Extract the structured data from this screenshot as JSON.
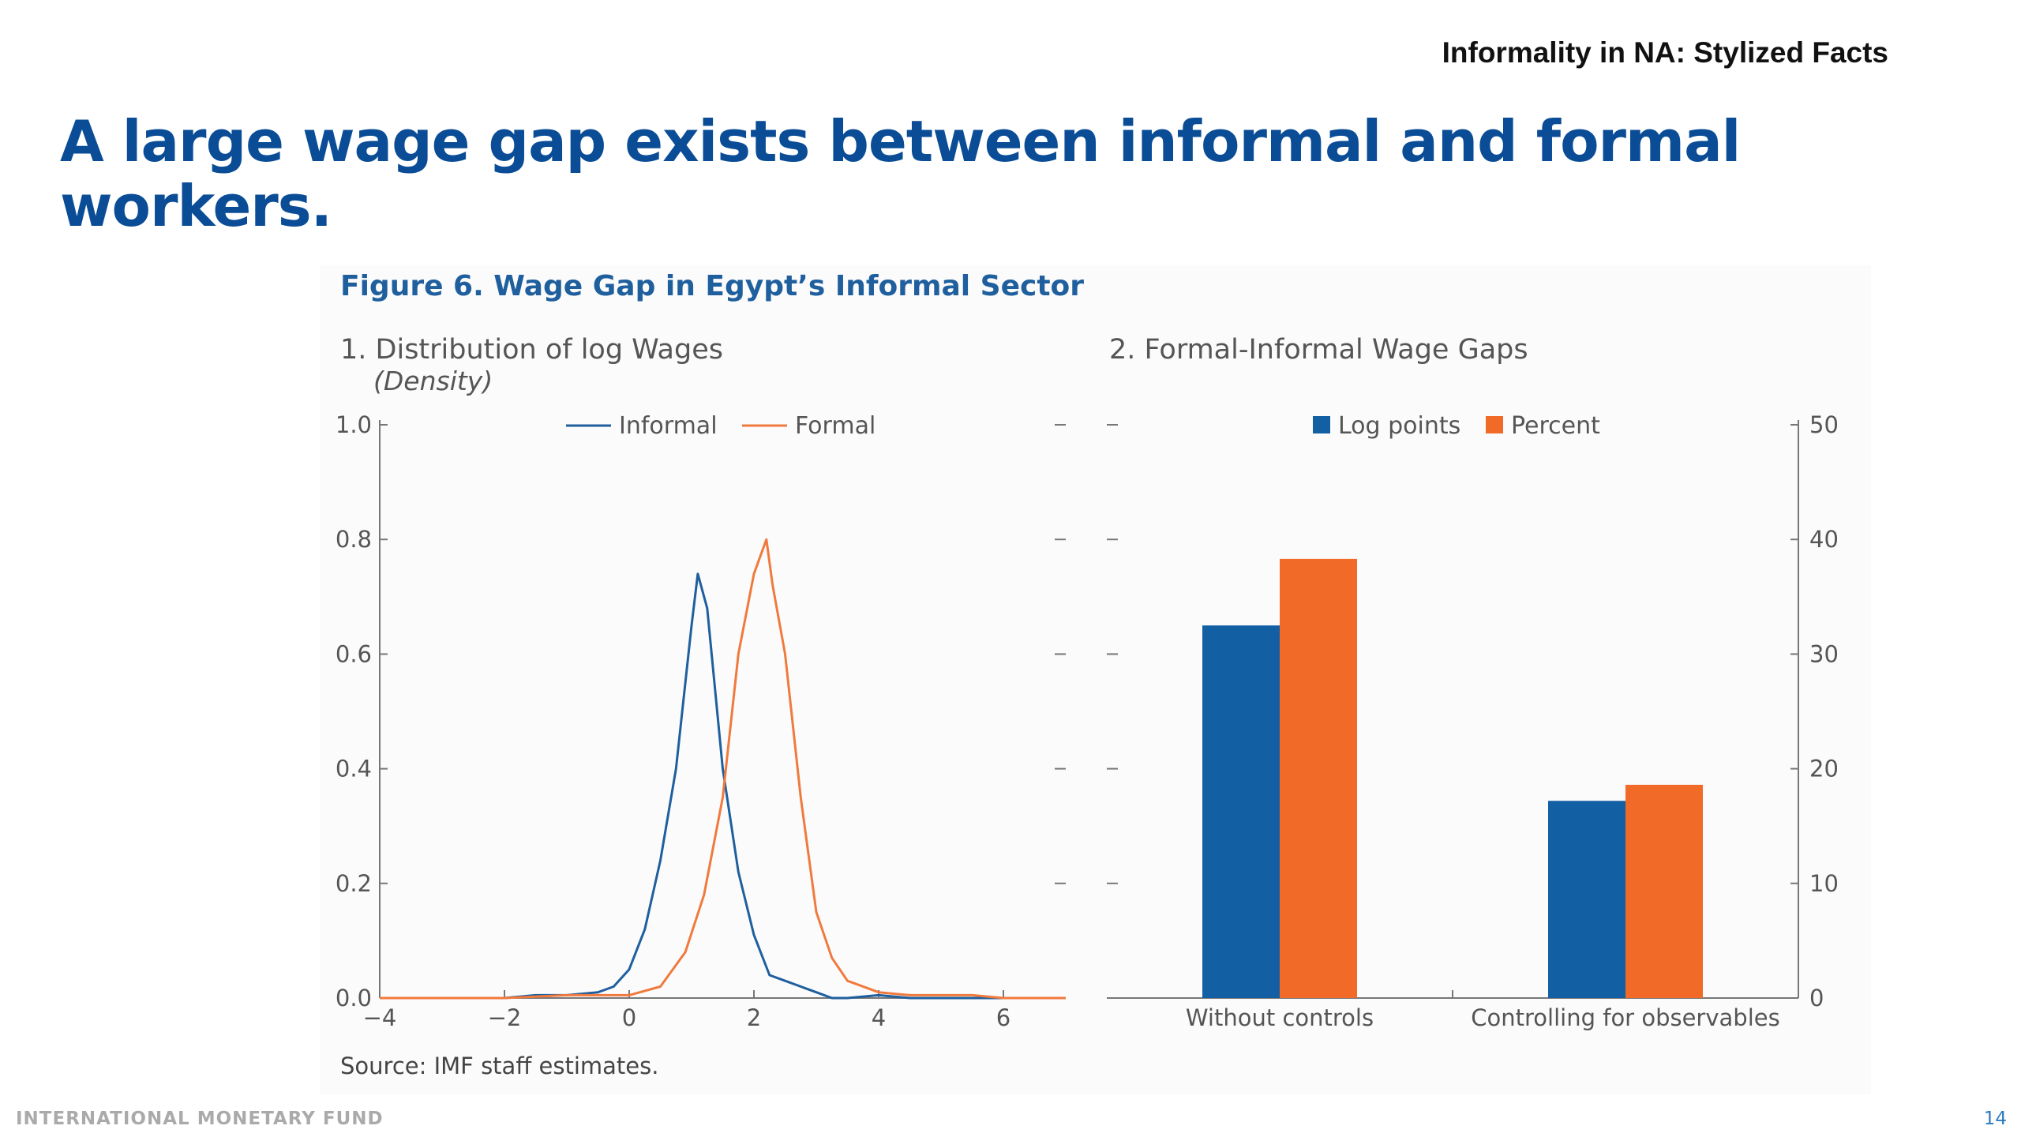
{
  "slide": {
    "header_tag": "Informality in NA: Stylized Facts",
    "title": "A large wage gap exists between informal and formal workers.",
    "footer_org": "INTERNATIONAL MONETARY FUND",
    "page_number": "14"
  },
  "figure": {
    "title": "Figure 6. Wage Gap in Egypt’s Informal Sector",
    "source": "Source: IMF staff estimates."
  },
  "colors": {
    "informal": "#1f5f9e",
    "formal": "#f07a3e",
    "log_points": "#135fa4",
    "percent": "#f26a28"
  },
  "chart_data": [
    {
      "type": "line",
      "title": "1. Distribution of log Wages",
      "subtitle": "(Density)",
      "xlim": [
        -4,
        7
      ],
      "ylim": [
        0,
        1
      ],
      "x_ticks": [
        "−4",
        "−2",
        "0",
        "2",
        "4",
        "6"
      ],
      "x_tick_values": [
        -4,
        -2,
        0,
        2,
        4,
        6
      ],
      "y_ticks": [
        "0.0",
        "0.2",
        "0.4",
        "0.6",
        "0.8",
        "1.0"
      ],
      "y_tick_values": [
        0,
        0.2,
        0.4,
        0.6,
        0.8,
        1.0
      ],
      "legend_position": "top",
      "series": [
        {
          "name": "Informal",
          "x": [
            -4,
            -3,
            -2,
            -1.5,
            -1,
            -0.5,
            -0.25,
            0,
            0.25,
            0.5,
            0.75,
            1.0,
            1.1,
            1.25,
            1.5,
            1.75,
            2.0,
            2.25,
            2.5,
            3.0,
            3.25,
            3.5,
            4.0,
            4.5,
            5.0,
            5.5,
            6.0,
            7.0
          ],
          "y": [
            0.0,
            0.0,
            0.0,
            0.005,
            0.005,
            0.01,
            0.02,
            0.05,
            0.12,
            0.24,
            0.4,
            0.65,
            0.74,
            0.68,
            0.4,
            0.22,
            0.11,
            0.04,
            0.03,
            0.01,
            0.0,
            0.0,
            0.005,
            0.0,
            0.0,
            0.0,
            0.0,
            0.0
          ]
        },
        {
          "name": "Formal",
          "x": [
            -4,
            -3,
            -2,
            -1,
            0,
            0.5,
            0.9,
            1.2,
            1.5,
            1.75,
            2.0,
            2.2,
            2.3,
            2.5,
            2.75,
            3.0,
            3.25,
            3.5,
            4.0,
            4.5,
            5.0,
            5.5,
            6.0,
            7.0
          ],
          "y": [
            0.0,
            0.0,
            0.0,
            0.005,
            0.005,
            0.02,
            0.08,
            0.18,
            0.35,
            0.6,
            0.74,
            0.8,
            0.72,
            0.6,
            0.35,
            0.15,
            0.07,
            0.03,
            0.01,
            0.005,
            0.005,
            0.005,
            0.0,
            0.0
          ]
        }
      ]
    },
    {
      "type": "bar",
      "title": "2. Formal-Informal Wage Gaps",
      "categories": [
        "Without controls",
        "Controlling for observables"
      ],
      "ylim": [
        0,
        50
      ],
      "y_ticks": [
        "0",
        "10",
        "20",
        "30",
        "40",
        "50"
      ],
      "y_tick_values": [
        0,
        10,
        20,
        30,
        40,
        50
      ],
      "y_axis_side": "right",
      "legend_position": "top",
      "series": [
        {
          "name": "Log points",
          "values": [
            32.5,
            17.2
          ]
        },
        {
          "name": "Percent",
          "values": [
            38.3,
            18.6
          ]
        }
      ]
    }
  ]
}
